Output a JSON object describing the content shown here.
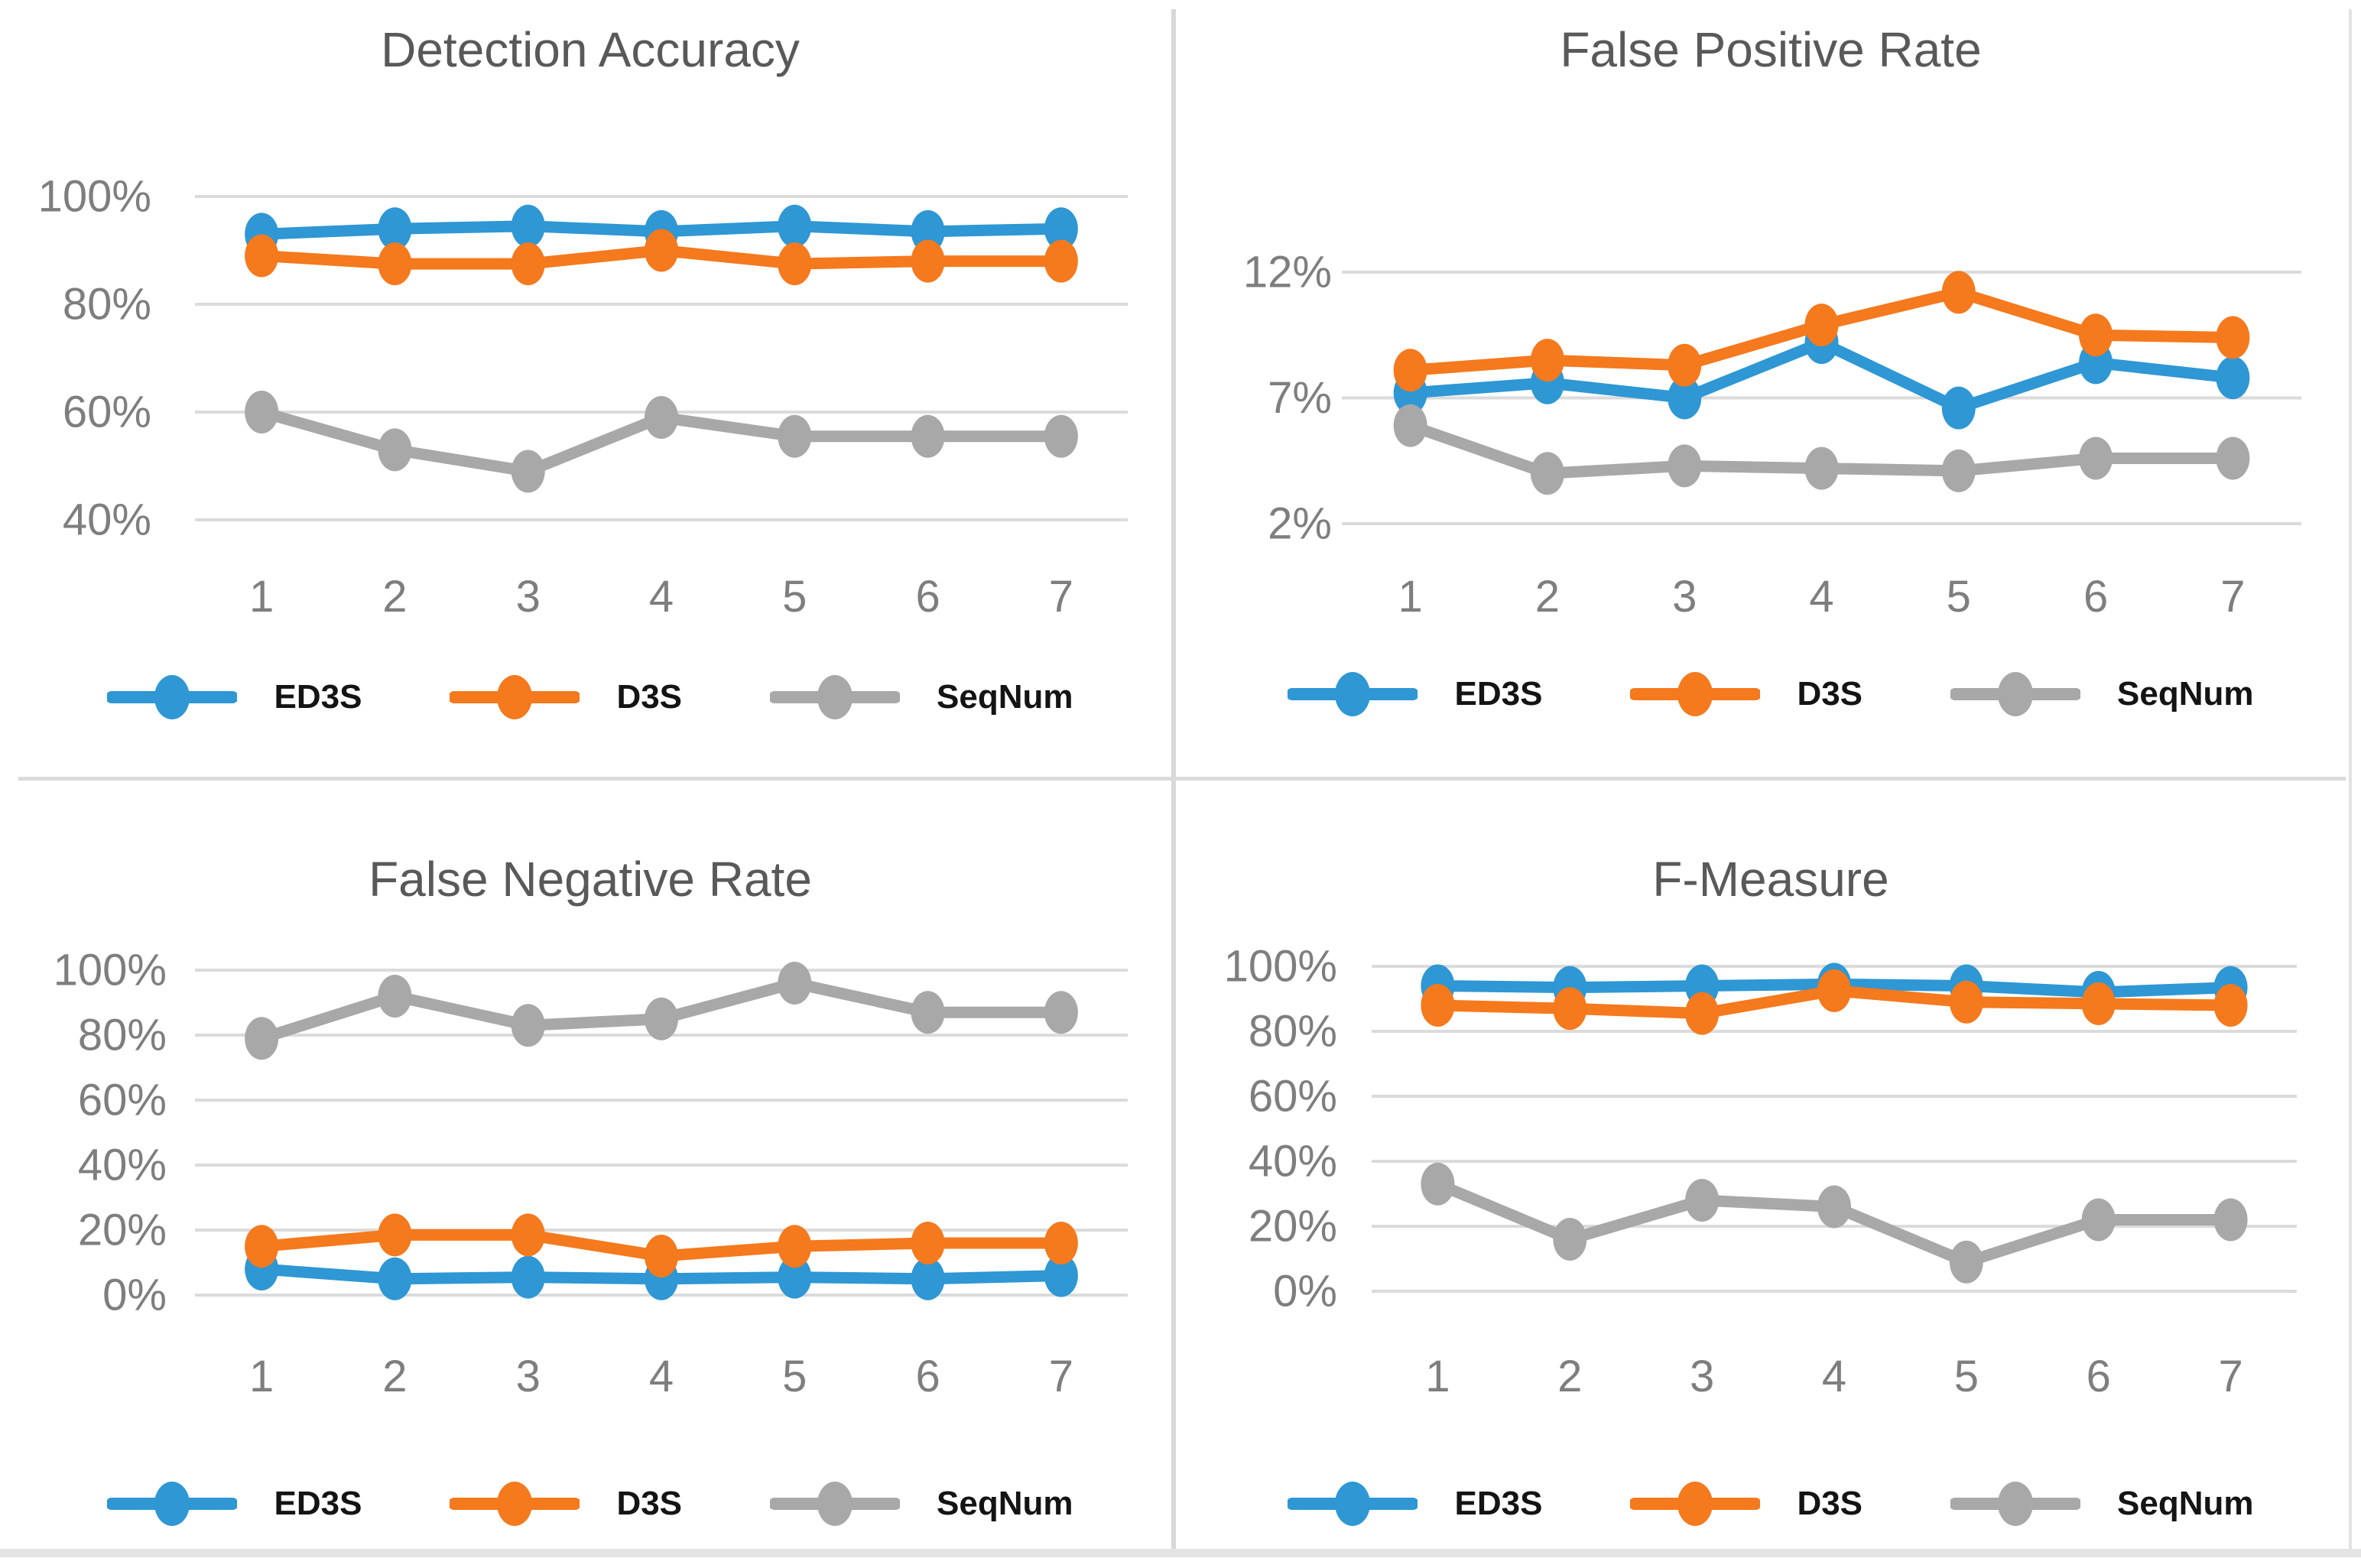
{
  "colors": {
    "ed3s": "#2E97D4",
    "d3s": "#F5791D",
    "seqnum": "#A8A8A8",
    "gridline": "#DBDBDB",
    "axis_text": "#7E7E7E",
    "title_text": "#595959",
    "legend_text": "#141414",
    "divider": "#D8D8D8"
  },
  "chart_data": [
    {
      "type": "line",
      "title": "Detection Accuracy",
      "categories": [
        "1",
        "2",
        "3",
        "4",
        "5",
        "6",
        "7"
      ],
      "ytick_labels": [
        "100%",
        "80%",
        "60%",
        "40%"
      ],
      "ytick_values": [
        100,
        80,
        60,
        40
      ],
      "ylim": [
        40,
        100
      ],
      "grid": true,
      "legend_position": "bottom",
      "series": [
        {
          "name": "ED3S",
          "color": "#2E97D4",
          "values": [
            93,
            94,
            94.5,
            93.5,
            94.5,
            93.5,
            94
          ]
        },
        {
          "name": "D3S",
          "color": "#F5791D",
          "values": [
            89,
            87.5,
            87.5,
            90,
            87.5,
            88,
            88
          ]
        },
        {
          "name": "SeqNum",
          "color": "#A8A8A8",
          "values": [
            60,
            53,
            49,
            59,
            55.5,
            55.5,
            55.5
          ]
        }
      ]
    },
    {
      "type": "line",
      "title": "False Positive Rate",
      "categories": [
        "1",
        "2",
        "3",
        "4",
        "5",
        "6",
        "7"
      ],
      "ytick_labels": [
        "12%",
        "7%",
        "2%"
      ],
      "ytick_values": [
        12,
        7,
        2
      ],
      "ylim": [
        2,
        12
      ],
      "grid": true,
      "legend_position": "bottom",
      "series": [
        {
          "name": "ED3S",
          "color": "#2E97D4",
          "values": [
            7.2,
            7.6,
            7.0,
            9.2,
            6.6,
            8.4,
            7.8
          ]
        },
        {
          "name": "D3S",
          "color": "#F5791D",
          "values": [
            8.1,
            8.5,
            8.3,
            9.9,
            11.2,
            9.5,
            9.4
          ]
        },
        {
          "name": "SeqNum",
          "color": "#A8A8A8",
          "values": [
            5.9,
            4.0,
            4.3,
            4.2,
            4.1,
            4.6,
            4.6
          ]
        }
      ]
    },
    {
      "type": "line",
      "title": "False Negative Rate",
      "categories": [
        "1",
        "2",
        "3",
        "4",
        "5",
        "6",
        "7"
      ],
      "ytick_labels": [
        "100%",
        "80%",
        "60%",
        "40%",
        "20%",
        "0%"
      ],
      "ytick_values": [
        100,
        80,
        60,
        40,
        20,
        0
      ],
      "ylim": [
        0,
        100
      ],
      "grid": true,
      "legend_position": "bottom",
      "series": [
        {
          "name": "ED3S",
          "color": "#2E97D4",
          "values": [
            8,
            5,
            5.5,
            5,
            5.5,
            5,
            6
          ]
        },
        {
          "name": "D3S",
          "color": "#F5791D",
          "values": [
            15,
            18.5,
            18.5,
            12,
            15,
            16,
            16
          ]
        },
        {
          "name": "SeqNum",
          "color": "#A8A8A8",
          "values": [
            79,
            92,
            83,
            85,
            96,
            87,
            87
          ]
        }
      ]
    },
    {
      "type": "line",
      "title": "F-Measure",
      "categories": [
        "1",
        "2",
        "3",
        "4",
        "5",
        "6",
        "7"
      ],
      "ytick_labels": [
        "100%",
        "80%",
        "60%",
        "40%",
        "20%",
        "0%"
      ],
      "ytick_values": [
        100,
        80,
        60,
        40,
        20,
        0
      ],
      "ylim": [
        0,
        100
      ],
      "grid": true,
      "legend_position": "bottom",
      "series": [
        {
          "name": "ED3S",
          "color": "#2E97D4",
          "values": [
            94,
            93.5,
            94,
            94.5,
            94,
            92,
            93.5
          ]
        },
        {
          "name": "D3S",
          "color": "#F5791D",
          "values": [
            88,
            87,
            85.5,
            92.5,
            89,
            88.5,
            88
          ]
        },
        {
          "name": "SeqNum",
          "color": "#A8A8A8",
          "values": [
            33,
            16,
            28,
            26,
            9,
            22,
            22
          ]
        }
      ]
    }
  ]
}
